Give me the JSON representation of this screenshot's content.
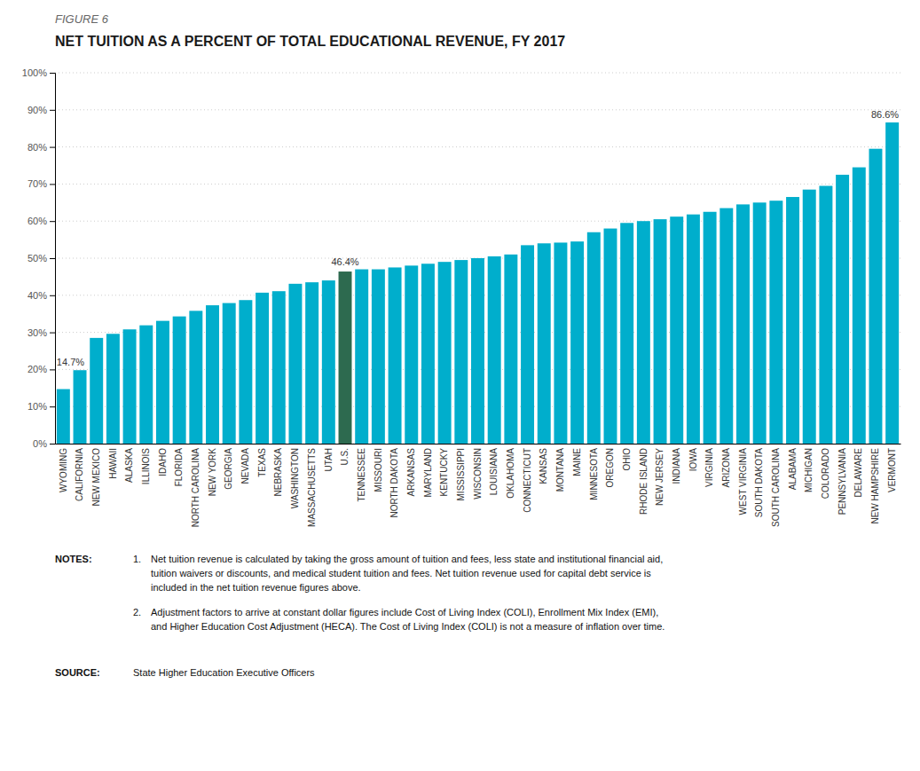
{
  "chart_data": {
    "type": "bar",
    "subtitle": "FIGURE 6",
    "title": "NET TUITION AS A PERCENT OF TOTAL EDUCATIONAL REVENUE, FY 2017",
    "categories": [
      "WYOMING",
      "CALIFORNIA",
      "NEW MEXICO",
      "HAWAII",
      "ALASKA",
      "ILLINOIS",
      "IDAHO",
      "FLORIDA",
      "NORTH CAROLINA",
      "NEW YORK",
      "GEORGIA",
      "NEVADA",
      "TEXAS",
      "NEBRASKA",
      "WASHINGTON",
      "MASSACHUSETTS",
      "UTAH",
      "U.S.",
      "TENNESSEE",
      "MISSOURI",
      "NORTH DAKOTA",
      "ARKANSAS",
      "MARYLAND",
      "KENTUCKY",
      "MISSISSIPPI",
      "WISCONSIN",
      "LOUISIANA",
      "OKLAHOMA",
      "CONNECTICUT",
      "KANSAS",
      "MONTANA",
      "MAINE",
      "MINNESOTA",
      "OREGON",
      "OHIO",
      "RHODE ISLAND",
      "NEW JERSEY",
      "INDIANA",
      "IOWA",
      "VIRGINIA",
      "ARIZONA",
      "WEST VIRGINIA",
      "SOUTH DAKOTA",
      "SOUTH CAROLINA",
      "ALABAMA",
      "MICHIGAN",
      "COLORADO",
      "PENNSYLVANIA",
      "DELAWARE",
      "NEW HAMPSHIRE",
      "VERMONT"
    ],
    "values": [
      14.7,
      19.8,
      28.5,
      29.6,
      30.8,
      31.9,
      33.1,
      34.3,
      35.8,
      37.3,
      37.9,
      38.7,
      40.7,
      41.1,
      43.1,
      43.5,
      44.0,
      46.4,
      47.0,
      47.0,
      47.5,
      48.0,
      48.5,
      49.0,
      49.5,
      50.0,
      50.5,
      51.0,
      53.5,
      54.0,
      54.2,
      54.5,
      57.0,
      58.0,
      59.5,
      60.0,
      60.5,
      61.2,
      61.8,
      62.5,
      63.5,
      64.5,
      65.0,
      65.5,
      66.5,
      68.5,
      69.5,
      72.5,
      74.5,
      79.5,
      86.6
    ],
    "colors": [
      "#00AECC",
      "#00AECC",
      "#00AECC",
      "#00AECC",
      "#00AECC",
      "#00AECC",
      "#00AECC",
      "#00AECC",
      "#00AECC",
      "#00AECC",
      "#00AECC",
      "#00AECC",
      "#00AECC",
      "#00AECC",
      "#00AECC",
      "#00AECC",
      "#00AECC",
      "#2D6A4F",
      "#00AECC",
      "#00AECC",
      "#00AECC",
      "#00AECC",
      "#00AECC",
      "#00AECC",
      "#00AECC",
      "#00AECC",
      "#00AECC",
      "#00AECC",
      "#00AECC",
      "#00AECC",
      "#00AECC",
      "#00AECC",
      "#00AECC",
      "#00AECC",
      "#00AECC",
      "#00AECC",
      "#00AECC",
      "#00AECC",
      "#00AECC",
      "#00AECC",
      "#00AECC",
      "#00AECC",
      "#00AECC",
      "#00AECC",
      "#00AECC",
      "#00AECC",
      "#00AECC",
      "#00AECC",
      "#00AECC",
      "#00AECC",
      "#00AECC"
    ],
    "ylim": [
      0,
      100
    ],
    "yticks": [
      {
        "value": 0,
        "label": "0%"
      },
      {
        "value": 10,
        "label": "10%"
      },
      {
        "value": 20,
        "label": "20%"
      },
      {
        "value": 30,
        "label": "30%"
      },
      {
        "value": 40,
        "label": "40%"
      },
      {
        "value": 50,
        "label": "50%"
      },
      {
        "value": 60,
        "label": "60%"
      },
      {
        "value": 70,
        "label": "70%"
      },
      {
        "value": 80,
        "label": "80%"
      },
      {
        "value": 90,
        "label": "90%"
      },
      {
        "value": 100,
        "label": "100%"
      }
    ],
    "grid": true,
    "annotations": [
      {
        "category": "WYOMING",
        "value": 14.7,
        "text": "14.7%"
      },
      {
        "category": "U.S.",
        "value": 46.4,
        "text": "46.4%"
      },
      {
        "category": "VERMONT",
        "value": 86.6,
        "text": "86.6%"
      }
    ],
    "notes_label": "NOTES:",
    "notes": [
      {
        "number": "1.",
        "lines": [
          "Net tuition revenue is calculated by taking the gross amount of tuition and fees, less state and institutional financial aid,",
          "tuition waivers or discounts, and medical student tuition and fees. Net tuition revenue used for capital debt service is",
          "included in the net tuition revenue figures above."
        ]
      },
      {
        "number": "2.",
        "lines": [
          "Adjustment factors to arrive at constant dollar figures include Cost of Living Index (COLI), Enrollment Mix Index (EMI),",
          "and Higher Education Cost Adjustment (HECA). The Cost of Living Index (COLI) is not a measure of inflation over time."
        ]
      }
    ],
    "source_label": "SOURCE:",
    "source": "State Higher Education Executive Officers"
  }
}
